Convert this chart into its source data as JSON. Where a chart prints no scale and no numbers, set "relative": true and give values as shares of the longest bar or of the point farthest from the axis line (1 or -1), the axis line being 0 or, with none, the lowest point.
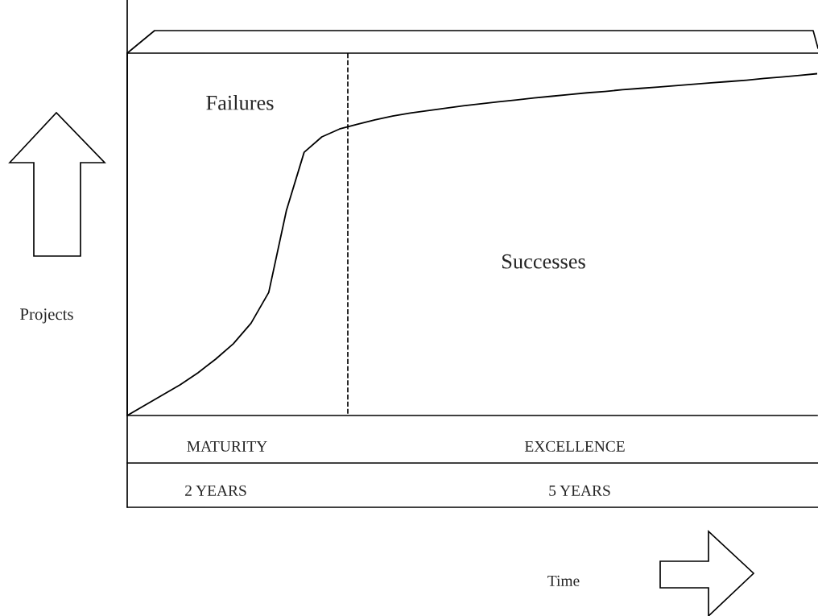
{
  "chart_data": {
    "type": "line",
    "relative": true,
    "categories": [
      null,
      null,
      null,
      null,
      null,
      null,
      null,
      null,
      null,
      null,
      null,
      null,
      null,
      null,
      null,
      null,
      null,
      null,
      null,
      null,
      null,
      null,
      null,
      null,
      null,
      null,
      null,
      null,
      null,
      null,
      null,
      null,
      null,
      null,
      null,
      null,
      null,
      null,
      null,
      null
    ],
    "series": [
      {
        "color": "#000000",
        "values": [
          0,
          0.03,
          0.06,
          0.09,
          0.125,
          0.165,
          0.21,
          0.27,
          0.36,
          0.6,
          0.77,
          0.815,
          0.838,
          0.852,
          0.865,
          0.876,
          0.885,
          0.892,
          0.899,
          0.906,
          0.912,
          0.918,
          0.923,
          0.929,
          0.934,
          0.939,
          0.944,
          0.948,
          0.953,
          0.957,
          0.961,
          0.965,
          0.969,
          0.973,
          0.977,
          0.981,
          0.986,
          0.99,
          0.995,
          1.0
        ]
      }
    ],
    "annotations": [
      "Failures",
      "Successes",
      "MATURITY",
      "EXCELLENCE",
      "2 YEARS",
      "5 YEARS",
      "Projects",
      "Time"
    ],
    "line_style": "solid"
  }
}
